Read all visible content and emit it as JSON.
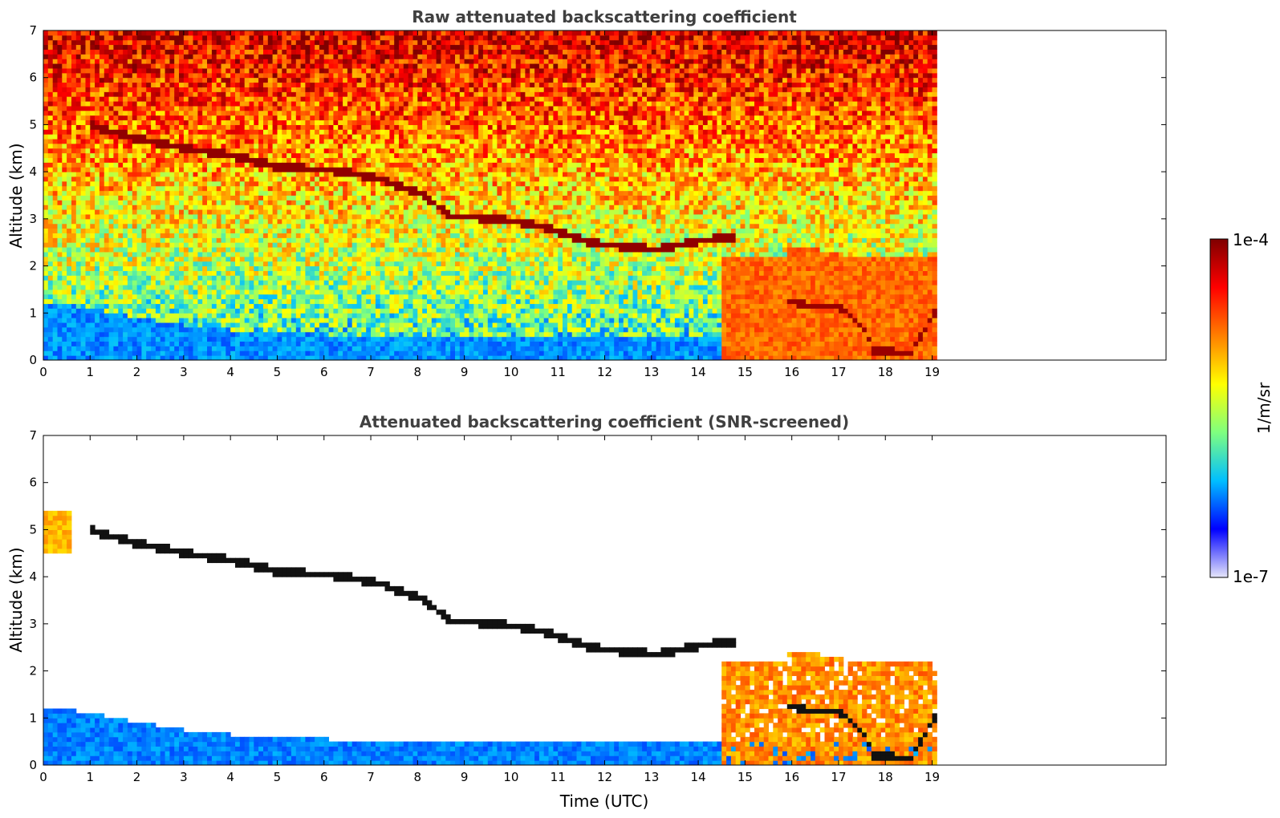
{
  "chart_data": [
    {
      "type": "heatmap",
      "title": "Raw attenuated backscattering coefficient",
      "xlabel": "",
      "ylabel": "Altitude (km)",
      "xlim": [
        0,
        24
      ],
      "ylim": [
        0,
        7
      ],
      "x_ticks": [
        0,
        1,
        2,
        3,
        4,
        5,
        6,
        7,
        8,
        9,
        10,
        11,
        12,
        13,
        14,
        15,
        16,
        17,
        18,
        19
      ],
      "y_ticks": [
        0,
        1,
        2,
        3,
        4,
        5,
        6,
        7
      ],
      "data_extent_x": [
        0,
        19.1
      ],
      "cloud_layer": {
        "x": [
          0.9,
          2,
          3,
          4,
          5,
          6,
          7,
          8,
          8.7,
          9,
          10,
          10.6,
          11.6,
          12,
          13,
          14,
          14.7
        ],
        "y": [
          4.95,
          4.65,
          4.45,
          4.3,
          4.05,
          4.0,
          3.85,
          3.5,
          3.0,
          3.0,
          2.9,
          2.8,
          2.45,
          2.4,
          2.3,
          2.5,
          2.55
        ]
      },
      "low_cloud": {
        "x": [
          15.8,
          16.5,
          17.0,
          17.5,
          17.7,
          18.0,
          18.5,
          19.0
        ],
        "y": [
          1.2,
          1.1,
          1.05,
          0.6,
          0.15,
          0.15,
          0.12,
          0.95
        ]
      }
    },
    {
      "type": "heatmap",
      "title": "Attenuated backscattering coefficient (SNR-screened)",
      "xlabel": "Time (UTC)",
      "ylabel": "Altitude (km)",
      "xlim": [
        0,
        24
      ],
      "ylim": [
        0,
        7
      ],
      "x_ticks": [
        0,
        1,
        2,
        3,
        4,
        5,
        6,
        7,
        8,
        9,
        10,
        11,
        12,
        13,
        14,
        15,
        16,
        17,
        18,
        19
      ],
      "y_ticks": [
        0,
        1,
        2,
        3,
        4,
        5,
        6,
        7
      ],
      "data_extent_x": [
        0,
        19.1
      ],
      "boundary_layer_top": {
        "x": [
          0,
          1,
          2,
          3,
          4,
          5,
          6,
          7,
          8,
          9,
          10,
          11
        ],
        "y": [
          1.2,
          1.05,
          0.85,
          0.7,
          0.6,
          0.55,
          0.5,
          0.5,
          0.45,
          0.45,
          0.45,
          0.5
        ]
      }
    }
  ],
  "colorbar": {
    "min_label": "1e-7",
    "max_label": "1e-4",
    "label": "1/m/sr",
    "colors": [
      "#e6e6fa",
      "#0000ff",
      "#00bfff",
      "#7fff7f",
      "#ffff00",
      "#ff7f00",
      "#ff0000",
      "#7f0000"
    ]
  }
}
